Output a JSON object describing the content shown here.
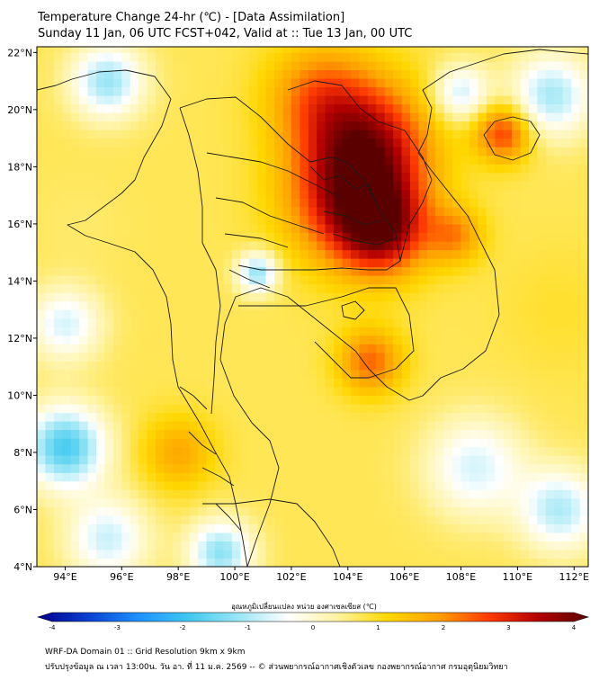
{
  "header": {
    "title": "Temperature Change 24-hr (℃) - [Data Assimilation]",
    "subtitle": "Sunday 11 Jan, 06 UTC FCST+042, Valid at :: Tue 13 Jan, 00 UTC"
  },
  "map": {
    "lon_range": [
      93,
      112.5
    ],
    "lat_range": [
      4,
      22.2
    ],
    "lon_ticks": [
      {
        "value": 94,
        "label": "94°E"
      },
      {
        "value": 96,
        "label": "96°E"
      },
      {
        "value": 98,
        "label": "98°E"
      },
      {
        "value": 100,
        "label": "100°E"
      },
      {
        "value": 102,
        "label": "102°E"
      },
      {
        "value": 104,
        "label": "104°E"
      },
      {
        "value": 106,
        "label": "106°E"
      },
      {
        "value": 108,
        "label": "108°E"
      },
      {
        "value": 110,
        "label": "110°E"
      },
      {
        "value": 112,
        "label": "112°E"
      }
    ],
    "lat_ticks": [
      {
        "value": 22,
        "label": "22°N"
      },
      {
        "value": 20,
        "label": "20°N"
      },
      {
        "value": 18,
        "label": "18°N"
      },
      {
        "value": 16,
        "label": "16°N"
      },
      {
        "value": 14,
        "label": "14°N"
      },
      {
        "value": 12,
        "label": "12°N"
      },
      {
        "value": 10,
        "label": "10°N"
      },
      {
        "value": 8,
        "label": "8°N"
      },
      {
        "value": 6,
        "label": "6°N"
      },
      {
        "value": 4,
        "label": "4°N"
      }
    ],
    "field_hotspots": [
      {
        "lon": 104.2,
        "lat": 17.0,
        "value": 3.5,
        "spread": 1.6
      },
      {
        "lon": 105.2,
        "lat": 15.8,
        "value": 3.0,
        "spread": 1.1
      },
      {
        "lon": 104.8,
        "lat": 19.0,
        "value": 2.8,
        "spread": 1.5
      },
      {
        "lon": 103.0,
        "lat": 20.5,
        "value": 2.2,
        "spread": 1.3
      },
      {
        "lon": 109.5,
        "lat": 19.2,
        "value": 2.8,
        "spread": 0.7
      },
      {
        "lon": 104.8,
        "lat": 11.2,
        "value": 2.4,
        "spread": 0.8
      },
      {
        "lon": 107.8,
        "lat": 15.6,
        "value": 2.0,
        "spread": 0.7
      },
      {
        "lon": 98.0,
        "lat": 8.0,
        "value": 1.8,
        "spread": 0.9
      },
      {
        "lon": 100.8,
        "lat": 14.3,
        "value": -1.4,
        "spread": 0.5
      },
      {
        "lon": 94.0,
        "lat": 8.2,
        "value": -2.0,
        "spread": 1.0
      },
      {
        "lon": 95.5,
        "lat": 21.0,
        "value": -1.3,
        "spread": 0.9
      },
      {
        "lon": 111.2,
        "lat": 20.5,
        "value": -1.2,
        "spread": 1.0
      },
      {
        "lon": 108.0,
        "lat": 20.6,
        "value": -0.9,
        "spread": 0.7
      },
      {
        "lon": 99.5,
        "lat": 4.5,
        "value": -1.4,
        "spread": 0.8
      },
      {
        "lon": 108.5,
        "lat": 7.5,
        "value": -0.8,
        "spread": 1.2
      },
      {
        "lon": 111.5,
        "lat": 6.0,
        "value": -1.1,
        "spread": 1.0
      },
      {
        "lon": 95.5,
        "lat": 5.0,
        "value": -0.9,
        "spread": 1.0
      },
      {
        "lon": 94.0,
        "lat": 12.5,
        "value": -0.8,
        "spread": 0.9
      },
      {
        "lon": 111.5,
        "lat": 13.0,
        "value": 0.9,
        "spread": 1.5
      },
      {
        "lon": 94.5,
        "lat": 16.0,
        "value": 0.6,
        "spread": 1.2
      }
    ]
  },
  "colorbar": {
    "label": "อุณหภูมิเปลี่ยนแปลง หน่วย องศาเซลเซียส (℃)",
    "min": -4,
    "max": 4,
    "ticks": [
      {
        "value": -4,
        "label": "-4"
      },
      {
        "value": -3,
        "label": "-3"
      },
      {
        "value": -2,
        "label": "-2"
      },
      {
        "value": -1,
        "label": "-1"
      },
      {
        "value": 0,
        "label": "0"
      },
      {
        "value": 1,
        "label": "1"
      },
      {
        "value": 2,
        "label": "2"
      },
      {
        "value": 3,
        "label": "3"
      },
      {
        "value": 4,
        "label": "4"
      }
    ],
    "colors": [
      "#00008b",
      "#0a3fd0",
      "#1e90ff",
      "#3fc8f0",
      "#9ae6f5",
      "#ffffff",
      "#fff3a0",
      "#ffd700",
      "#ffa000",
      "#ff3c00",
      "#b40000",
      "#5a0000"
    ]
  },
  "footer": {
    "line1": "WRF-DA Domain 01 :: Grid Resolution 9km x 9km",
    "line2": "ปรับปรุงข้อมูล ณ เวลา 13:00น. วัน อา. ที่ 11 ม.ค. 2569 -- © ส่วนพยากรณ์อากาศเชิงตัวเลข กองพยากรณ์อากาศ กรมอุตุนิยมวิทยา"
  }
}
